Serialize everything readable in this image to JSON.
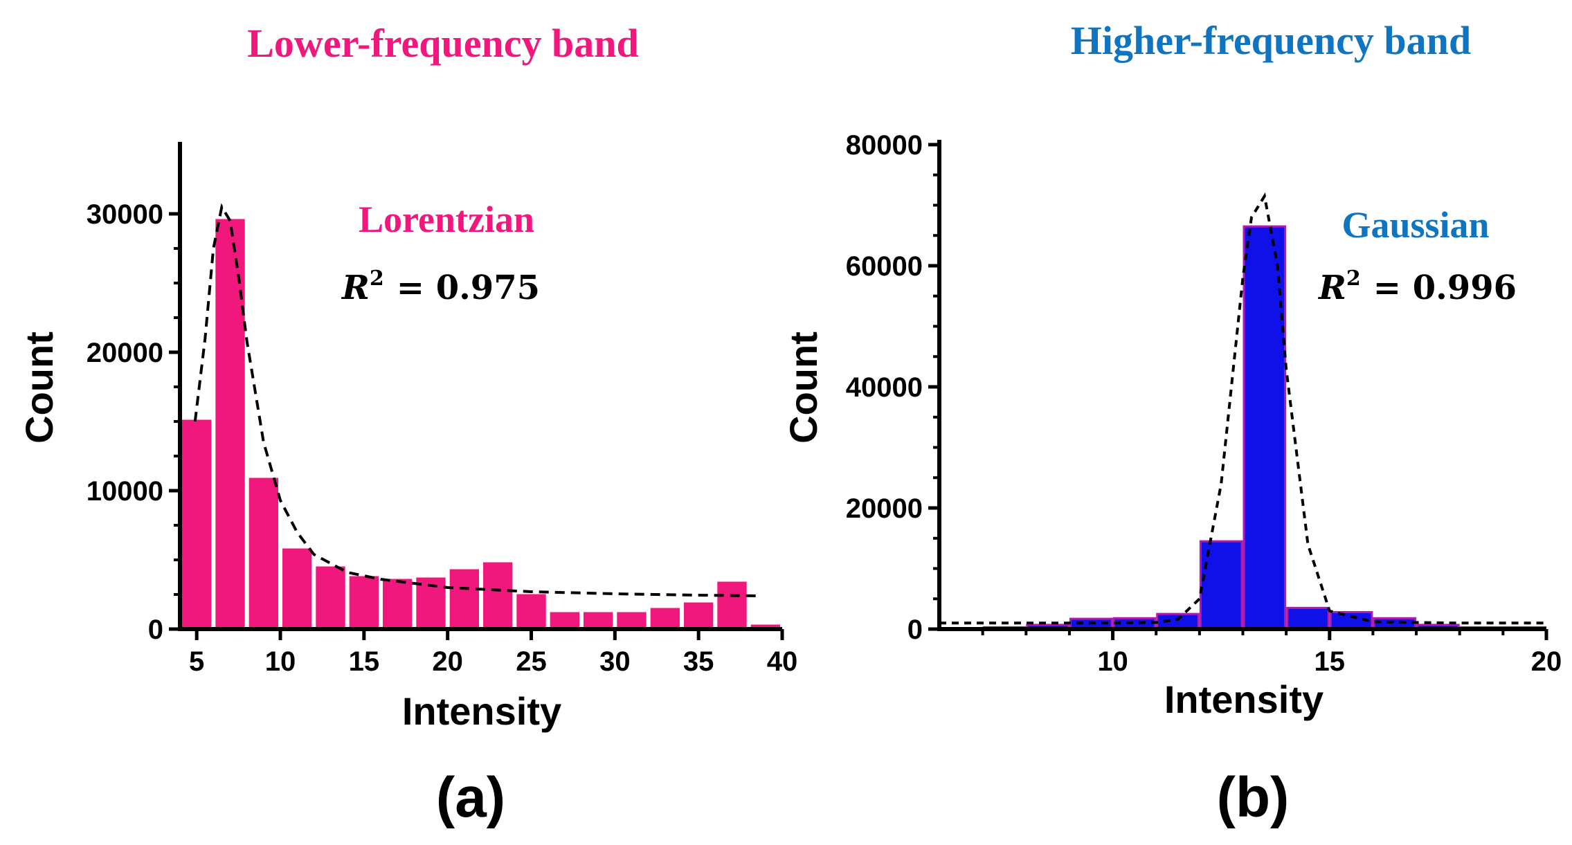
{
  "chart_data": [
    {
      "type": "bar",
      "panel_label": "(a)",
      "title": "Lower-frequency band",
      "title_color": "#f0177d",
      "bar_color": "#f0177d",
      "bar_edge_color": "#ffffff",
      "xlabel": "Intensity",
      "ylabel": "Count",
      "xlim": [
        4,
        40
      ],
      "ylim": [
        0,
        35000
      ],
      "xticks": [
        5,
        10,
        15,
        20,
        25,
        30,
        35,
        40
      ],
      "yticks": [
        0,
        10000,
        20000,
        30000
      ],
      "bin_width": 2,
      "bin_starts": [
        4,
        6,
        8,
        10,
        12,
        14,
        16,
        18,
        20,
        22,
        24,
        26,
        28,
        30,
        32,
        34,
        36,
        38
      ],
      "values": [
        15200,
        29700,
        11000,
        5900,
        4600,
        3900,
        3700,
        3800,
        4400,
        4900,
        2600,
        1300,
        1300,
        1300,
        1600,
        2000,
        3500,
        400
      ],
      "fit": {
        "name": "Lorentzian",
        "color": "#f0177d",
        "r2_label": "R",
        "r2_exponent": "2",
        "r2_text": "= 0.975",
        "x": [
          4.9,
          5.5,
          6.0,
          6.5,
          7.0,
          7.5,
          8.0,
          9.0,
          10.0,
          11.0,
          12.0,
          14.0,
          16.0,
          20.0,
          25.0,
          30.0,
          35.0,
          38.5
        ],
        "y": [
          15000,
          21000,
          27500,
          30500,
          29500,
          25500,
          20800,
          13500,
          9300,
          7000,
          5400,
          4100,
          3600,
          3000,
          2700,
          2550,
          2450,
          2400
        ]
      }
    },
    {
      "type": "bar",
      "panel_label": "(b)",
      "title": "Higher-frequency band",
      "title_color": "#0f75c0",
      "bar_color": "#1010e8",
      "bar_edge_color": "#b01cae",
      "xlabel": "Intensity",
      "ylabel": "Count",
      "xlim": [
        6,
        20
      ],
      "ylim": [
        0,
        80000
      ],
      "xticks": [
        10,
        15,
        20
      ],
      "yticks": [
        0,
        20000,
        40000,
        60000,
        80000
      ],
      "minor_xticks": [
        7,
        8,
        9,
        11,
        12,
        13,
        14,
        16,
        17,
        18,
        19
      ],
      "bin_width": 1,
      "bin_starts": [
        7,
        8,
        9,
        10,
        11,
        12,
        13,
        14,
        15,
        16,
        17,
        18,
        19
      ],
      "values": [
        300,
        700,
        1700,
        1800,
        2500,
        14500,
        66500,
        3500,
        2800,
        1800,
        700,
        300,
        300
      ],
      "fit": {
        "name": "Gaussian",
        "color": "#0f75c0",
        "r2_label": "R",
        "r2_exponent": "2",
        "r2_text": "= 0.996",
        "x": [
          6.0,
          8.0,
          10.0,
          11.0,
          11.5,
          12.0,
          12.5,
          13.0,
          13.2,
          13.5,
          13.8,
          14.0,
          14.5,
          15.0,
          16.0,
          18.0,
          20.0
        ],
        "y": [
          1000,
          1000,
          1000,
          1100,
          1600,
          5000,
          24000,
          58000,
          68000,
          71500,
          60000,
          43000,
          14000,
          3000,
          1200,
          1000,
          1000
        ]
      }
    }
  ]
}
